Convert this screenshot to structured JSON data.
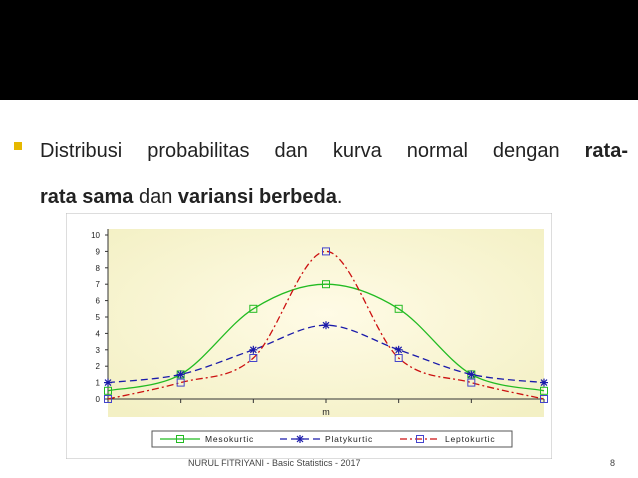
{
  "slide": {
    "bullet_color": "#e6b800",
    "text_line1_normal": "Distribusi probabilitas dan kurva normal dengan ",
    "text_line1_bold": "rata-",
    "text_line2_bold_a": "rata sama",
    "text_line2_normal_a": " dan ",
    "text_line2_bold_b": "variansi berbeda",
    "text_line2_normal_b": ".",
    "footer": "NURUL FITRIYANI - Basic Statistics - 2017",
    "page_number": "8"
  },
  "chart_data": {
    "type": "line",
    "x": [
      -3,
      -2,
      -1,
      0,
      1,
      2,
      3
    ],
    "x_tick_labels": [
      "",
      "",
      "",
      "m",
      "",
      "",
      ""
    ],
    "ylim": [
      0,
      10
    ],
    "yticks": [
      0,
      1,
      2,
      3,
      4,
      5,
      6,
      7,
      8,
      9,
      10
    ],
    "grid": false,
    "legend_position": "bottom",
    "series": [
      {
        "name": "Mesokurtic",
        "color": "#22bb22",
        "dash": "solid",
        "marker": "square",
        "values": [
          0.5,
          1.5,
          5.5,
          7,
          5.5,
          1.5,
          0.5
        ]
      },
      {
        "name": "Platykurtic",
        "color": "#1a1aaa",
        "dash": "dash",
        "marker": "star",
        "values": [
          1,
          1.5,
          3,
          4.5,
          3,
          1.5,
          1
        ]
      },
      {
        "name": "Leptokurtic",
        "color": "#cc1111",
        "dash": "dashdot",
        "marker": "square",
        "values": [
          0,
          1,
          2.5,
          9,
          2.5,
          1,
          0
        ]
      }
    ]
  }
}
